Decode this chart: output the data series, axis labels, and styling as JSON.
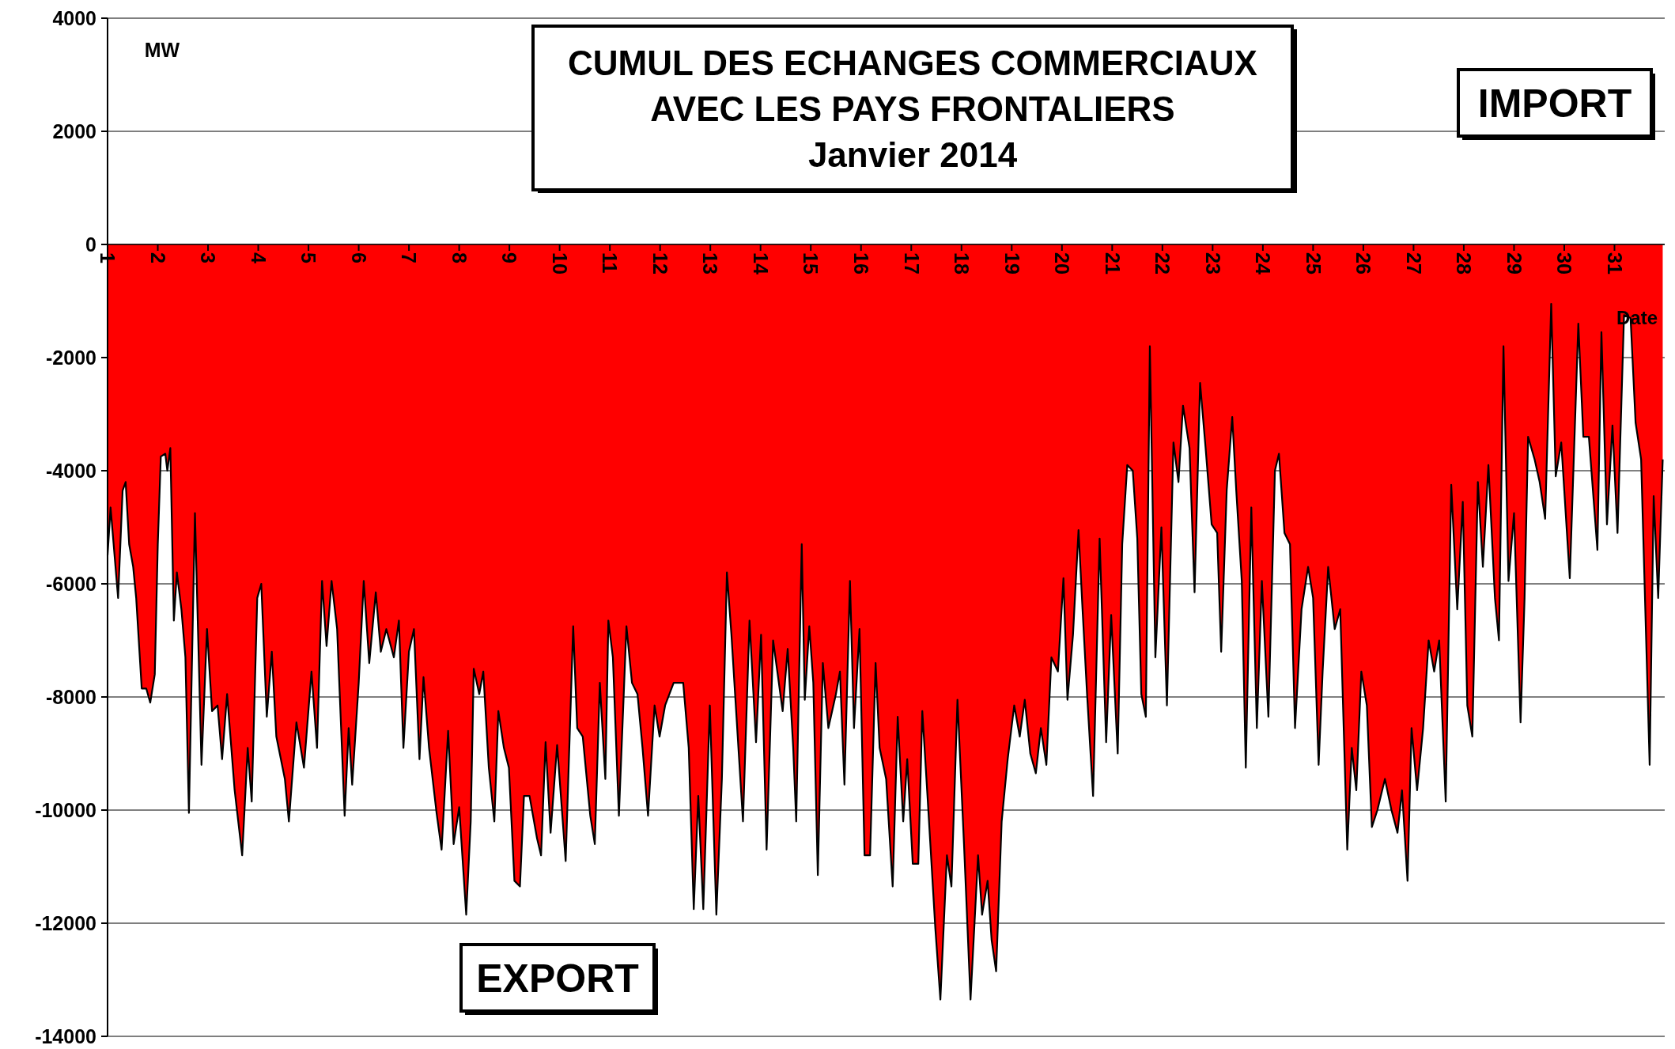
{
  "chart_data": {
    "type": "area",
    "title": "CUMUL DES ECHANGES COMMERCIAUX AVEC LES PAYS FRONTALIERS",
    "subtitle": "Janvier 2014",
    "xlabel": "Date",
    "annotations": [
      "MW",
      "IMPORT",
      "EXPORT"
    ],
    "xlim": [
      1,
      32
    ],
    "ylim": [
      -14000,
      4000
    ],
    "xticks": [
      1,
      2,
      3,
      4,
      5,
      6,
      7,
      8,
      9,
      10,
      11,
      12,
      13,
      14,
      15,
      16,
      17,
      18,
      19,
      20,
      21,
      22,
      23,
      24,
      25,
      26,
      27,
      28,
      29,
      30,
      31
    ],
    "yticks": [
      -14000,
      -12000,
      -10000,
      -8000,
      -6000,
      -4000,
      -2000,
      0,
      2000,
      4000
    ],
    "grid": "y",
    "series": [
      {
        "color": "#ff0000",
        "x": [
          1.0,
          1.06,
          1.21,
          1.3,
          1.36,
          1.43,
          1.51,
          1.57,
          1.68,
          1.77,
          1.85,
          1.94,
          2.0,
          2.06,
          2.15,
          2.19,
          2.25,
          2.32,
          2.38,
          2.47,
          2.55,
          2.62,
          2.74,
          2.87,
          2.98,
          3.08,
          3.19,
          3.28,
          3.38,
          3.53,
          3.68,
          3.79,
          3.87,
          3.98,
          4.06,
          4.17,
          4.27,
          4.36,
          4.53,
          4.61,
          4.76,
          4.91,
          5.06,
          5.17,
          5.27,
          5.36,
          5.46,
          5.57,
          5.72,
          5.8,
          5.87,
          6.0,
          6.1,
          6.21,
          6.34,
          6.44,
          6.55,
          6.7,
          6.8,
          6.89,
          7.0,
          7.1,
          7.21,
          7.29,
          7.4,
          7.55,
          7.65,
          7.78,
          7.89,
          8.0,
          8.14,
          8.23,
          8.29,
          8.4,
          8.48,
          8.59,
          8.7,
          8.78,
          8.89,
          8.99,
          9.1,
          9.21,
          9.29,
          9.4,
          9.55,
          9.63,
          9.72,
          9.82,
          9.95,
          10.12,
          10.27,
          10.35,
          10.46,
          10.61,
          10.7,
          10.8,
          10.91,
          10.97,
          11.06,
          11.18,
          11.33,
          11.44,
          11.55,
          11.65,
          11.76,
          11.89,
          11.99,
          12.1,
          12.27,
          12.46,
          12.57,
          12.67,
          12.76,
          12.86,
          12.99,
          13.12,
          13.23,
          13.33,
          13.42,
          13.5,
          13.65,
          13.78,
          13.91,
          14.01,
          14.12,
          14.25,
          14.44,
          14.54,
          14.65,
          14.71,
          14.82,
          14.88,
          14.97,
          15.05,
          15.14,
          15.24,
          15.35,
          15.5,
          15.58,
          15.67,
          15.78,
          15.86,
          15.97,
          16.07,
          16.18,
          16.29,
          16.37,
          16.5,
          16.63,
          16.73,
          16.84,
          16.92,
          17.03,
          17.14,
          17.22,
          17.33,
          17.48,
          17.58,
          17.71,
          17.8,
          17.92,
          18.05,
          18.18,
          18.33,
          18.41,
          18.52,
          18.6,
          18.69,
          18.8,
          18.92,
          19.05,
          19.16,
          19.26,
          19.37,
          19.48,
          19.58,
          19.69,
          19.79,
          19.92,
          20.03,
          20.11,
          20.22,
          20.33,
          20.41,
          20.5,
          20.62,
          20.75,
          20.88,
          20.98,
          21.11,
          21.2,
          21.3,
          21.41,
          21.5,
          21.58,
          21.67,
          21.75,
          21.86,
          21.98,
          22.09,
          22.22,
          22.32,
          22.41,
          22.54,
          22.64,
          22.75,
          22.86,
          22.98,
          23.09,
          23.17,
          23.28,
          23.39,
          23.47,
          23.58,
          23.66,
          23.77,
          23.88,
          23.98,
          24.11,
          24.24,
          24.32,
          24.43,
          24.54,
          24.64,
          24.77,
          24.9,
          25.0,
          25.11,
          25.19,
          25.3,
          25.43,
          25.54,
          25.68,
          25.77,
          25.86,
          25.96,
          26.07,
          26.17,
          26.28,
          26.43,
          26.56,
          26.68,
          26.77,
          26.88,
          26.96,
          27.07,
          27.19,
          27.3,
          27.41,
          27.51,
          27.64,
          27.75,
          27.87,
          27.98,
          28.07,
          28.17,
          28.28,
          28.38,
          28.49,
          28.62,
          28.7,
          28.79,
          28.89,
          29.0,
          29.13,
          29.21,
          29.28,
          29.41,
          29.51,
          29.62,
          29.74,
          29.83,
          29.94,
          30.11,
          30.28,
          30.38,
          30.49,
          30.66,
          30.74,
          30.85,
          30.96,
          31.06,
          31.19,
          31.32,
          31.42,
          31.53,
          31.7,
          31.78,
          31.87,
          31.96
        ],
        "values": [
          -5500,
          -4650,
          -6250,
          -4350,
          -4200,
          -5300,
          -5700,
          -6250,
          -7850,
          -7850,
          -8100,
          -7600,
          -5300,
          -3750,
          -3700,
          -4000,
          -3600,
          -6650,
          -5800,
          -6450,
          -7300,
          -10050,
          -4750,
          -9200,
          -6800,
          -8250,
          -8150,
          -9100,
          -7950,
          -9650,
          -10800,
          -8900,
          -9850,
          -6250,
          -6000,
          -8350,
          -7200,
          -8700,
          -9450,
          -10200,
          -8450,
          -9250,
          -7550,
          -8900,
          -5950,
          -7100,
          -5950,
          -6800,
          -10100,
          -8550,
          -9550,
          -7750,
          -5950,
          -7400,
          -6150,
          -7200,
          -6800,
          -7300,
          -6650,
          -8900,
          -7200,
          -6800,
          -9100,
          -7650,
          -8900,
          -10050,
          -10700,
          -8600,
          -10600,
          -9950,
          -11850,
          -10200,
          -7500,
          -7950,
          -7550,
          -9250,
          -10200,
          -8250,
          -8900,
          -9250,
          -11250,
          -11350,
          -9750,
          -9750,
          -10500,
          -10800,
          -8800,
          -10400,
          -8850,
          -10900,
          -6750,
          -8550,
          -8700,
          -10100,
          -10600,
          -7750,
          -9450,
          -6650,
          -7300,
          -10100,
          -6750,
          -7750,
          -7950,
          -8900,
          -10100,
          -8150,
          -8700,
          -8150,
          -7750,
          -7750,
          -8900,
          -11750,
          -9750,
          -11750,
          -8150,
          -11850,
          -9450,
          -5800,
          -6900,
          -8050,
          -10200,
          -6650,
          -8800,
          -6900,
          -10700,
          -7000,
          -8250,
          -7150,
          -8900,
          -10200,
          -5300,
          -8050,
          -6750,
          -7750,
          -11150,
          -7400,
          -8550,
          -7950,
          -7550,
          -9550,
          -5950,
          -8550,
          -6800,
          -10800,
          -10800,
          -7400,
          -8900,
          -9450,
          -11350,
          -8350,
          -10200,
          -9100,
          -10950,
          -10950,
          -8250,
          -9850,
          -12100,
          -13350,
          -10800,
          -11350,
          -8050,
          -10600,
          -13350,
          -10800,
          -11850,
          -11250,
          -12300,
          -12850,
          -10200,
          -9100,
          -8150,
          -8700,
          -8050,
          -9000,
          -9350,
          -8550,
          -9200,
          -7300,
          -7550,
          -5900,
          -8050,
          -6900,
          -5050,
          -6450,
          -7950,
          -9750,
          -5200,
          -8800,
          -6550,
          -9000,
          -5300,
          -3900,
          -4000,
          -5200,
          -7950,
          -8350,
          -1800,
          -7300,
          -5000,
          -8150,
          -3500,
          -4200,
          -2850,
          -3600,
          -6150,
          -2450,
          -3600,
          -4950,
          -5100,
          -7200,
          -4350,
          -3050,
          -4350,
          -5950,
          -9250,
          -4650,
          -8550,
          -5950,
          -8350,
          -4000,
          -3700,
          -5100,
          -5300,
          -8550,
          -6450,
          -5700,
          -6250,
          -9200,
          -7550,
          -5700,
          -6800,
          -6450,
          -10700,
          -8900,
          -9650,
          -7550,
          -8150,
          -10300,
          -10000,
          -9450,
          -10000,
          -10400,
          -9650,
          -11250,
          -8550,
          -9650,
          -8550,
          -7000,
          -7550,
          -7000,
          -9850,
          -4250,
          -6450,
          -4550,
          -8150,
          -8700,
          -4200,
          -5700,
          -3900,
          -6250,
          -7000,
          -1800,
          -5950,
          -4750,
          -8450,
          -6250,
          -3400,
          -3800,
          -4200,
          -4850,
          -1050,
          -4100,
          -3500,
          -5900,
          -1400,
          -3400,
          -3400,
          -5400,
          -1550,
          -4950,
          -3200,
          -5100,
          -1250,
          -1300,
          -3150,
          -3800,
          -9200,
          -4450,
          -6250,
          -3800
        ]
      }
    ]
  }
}
